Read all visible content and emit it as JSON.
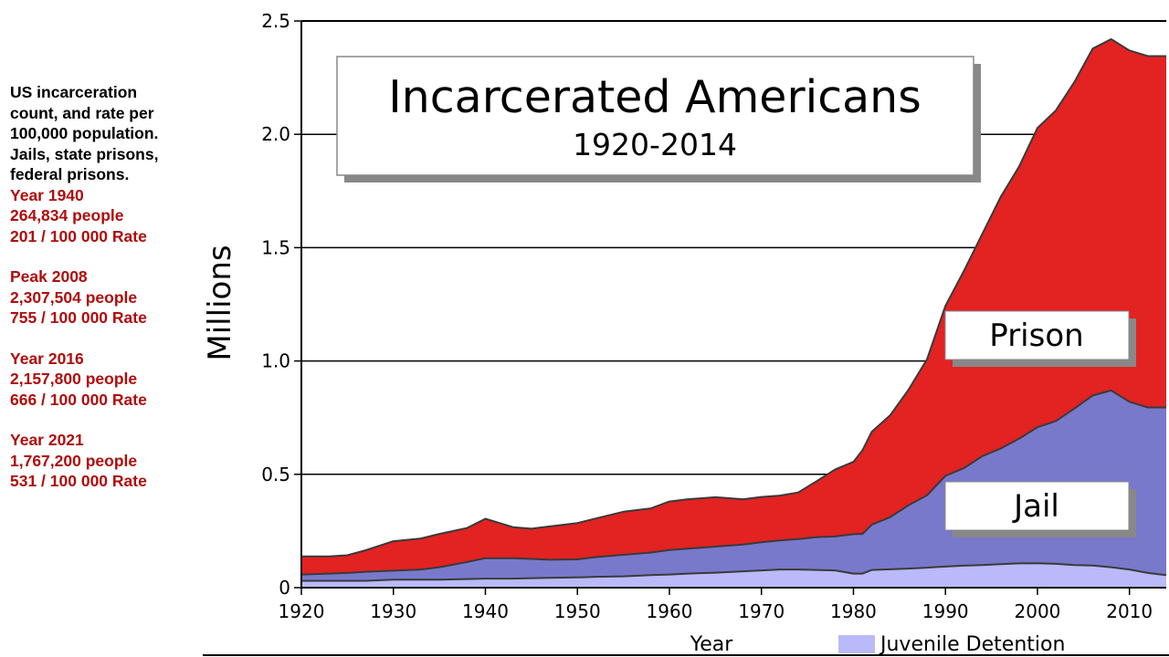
{
  "sidebar": {
    "intro": [
      "US incarceration",
      "count, and rate per",
      "100,000 population.",
      "Jails, state prisons,",
      "federal prisons."
    ],
    "stats": [
      [
        "Year 1940",
        "264,834 people",
        "201 / 100 000 Rate"
      ],
      [
        "Peak 2008",
        "2,307,504 people",
        "755 / 100 000 Rate"
      ],
      [
        "Year 2016",
        "2,157,800 people",
        "666 / 100 000 Rate"
      ],
      [
        "Year 2021",
        "1,767,200 people",
        "531 / 100 000 Rate"
      ]
    ]
  },
  "colors": {
    "prison": "#e32222",
    "jail": "#7879cb",
    "juvenile": "#babafa",
    "outline": "#3a3a3a"
  },
  "chart_data": {
    "type": "area",
    "stacked": true,
    "title": "Incarcerated Americans",
    "subtitle": "1920-2014",
    "xlabel": "Year",
    "ylabel": "Millions",
    "xlim": [
      1920,
      2014
    ],
    "ylim": [
      0,
      2.5
    ],
    "xticks": [
      1920,
      1930,
      1940,
      1950,
      1960,
      1970,
      1980,
      1990,
      2000,
      2010
    ],
    "yticks": [
      0,
      0.5,
      1.0,
      1.5,
      2.0,
      2.5
    ],
    "ytick_labels": [
      "0",
      "0.5",
      "1.0",
      "1.5",
      "2.0",
      "2.5"
    ],
    "grid": "horizontal",
    "x": [
      1920,
      1923,
      1925,
      1927,
      1930,
      1933,
      1935,
      1938,
      1940,
      1943,
      1945,
      1947,
      1950,
      1952,
      1955,
      1958,
      1960,
      1962,
      1965,
      1968,
      1970,
      1972,
      1974,
      1976,
      1978,
      1980,
      1981,
      1982,
      1984,
      1986,
      1988,
      1990,
      1992,
      1994,
      1996,
      1998,
      2000,
      2002,
      2004,
      2006,
      2008,
      2010,
      2012,
      2014
    ],
    "series": [
      {
        "name": "Juvenile Detention",
        "label": "Juvenile Detention",
        "values": [
          0.03,
          0.03,
          0.03,
          0.03,
          0.035,
          0.035,
          0.035,
          0.038,
          0.04,
          0.04,
          0.042,
          0.043,
          0.045,
          0.048,
          0.05,
          0.055,
          0.058,
          0.062,
          0.066,
          0.072,
          0.076,
          0.08,
          0.08,
          0.078,
          0.076,
          0.062,
          0.062,
          0.078,
          0.081,
          0.084,
          0.088,
          0.093,
          0.097,
          0.1,
          0.104,
          0.107,
          0.108,
          0.105,
          0.1,
          0.098,
          0.09,
          0.08,
          0.065,
          0.055
        ]
      },
      {
        "name": "Jail",
        "label": "Jail",
        "values": [
          0.028,
          0.032,
          0.035,
          0.04,
          0.04,
          0.045,
          0.055,
          0.075,
          0.09,
          0.09,
          0.085,
          0.08,
          0.08,
          0.087,
          0.095,
          0.1,
          0.108,
          0.11,
          0.115,
          0.118,
          0.124,
          0.128,
          0.134,
          0.145,
          0.15,
          0.174,
          0.175,
          0.2,
          0.23,
          0.28,
          0.32,
          0.4,
          0.43,
          0.48,
          0.51,
          0.55,
          0.6,
          0.63,
          0.69,
          0.75,
          0.78,
          0.74,
          0.73,
          0.74
        ]
      },
      {
        "name": "Prison",
        "label": "Prison",
        "values": [
          0.08,
          0.076,
          0.078,
          0.095,
          0.13,
          0.137,
          0.147,
          0.15,
          0.174,
          0.137,
          0.133,
          0.147,
          0.16,
          0.17,
          0.19,
          0.195,
          0.214,
          0.218,
          0.218,
          0.2,
          0.2,
          0.198,
          0.206,
          0.247,
          0.295,
          0.319,
          0.37,
          0.41,
          0.45,
          0.51,
          0.6,
          0.75,
          0.87,
          0.98,
          1.11,
          1.2,
          1.32,
          1.37,
          1.44,
          1.53,
          1.55,
          1.55,
          1.55,
          1.55
        ]
      }
    ],
    "area_labels": {
      "prison": "Prison",
      "jail": "Jail"
    },
    "legend": {
      "position": "bottom-right",
      "entries": [
        "Juvenile Detention"
      ]
    }
  }
}
